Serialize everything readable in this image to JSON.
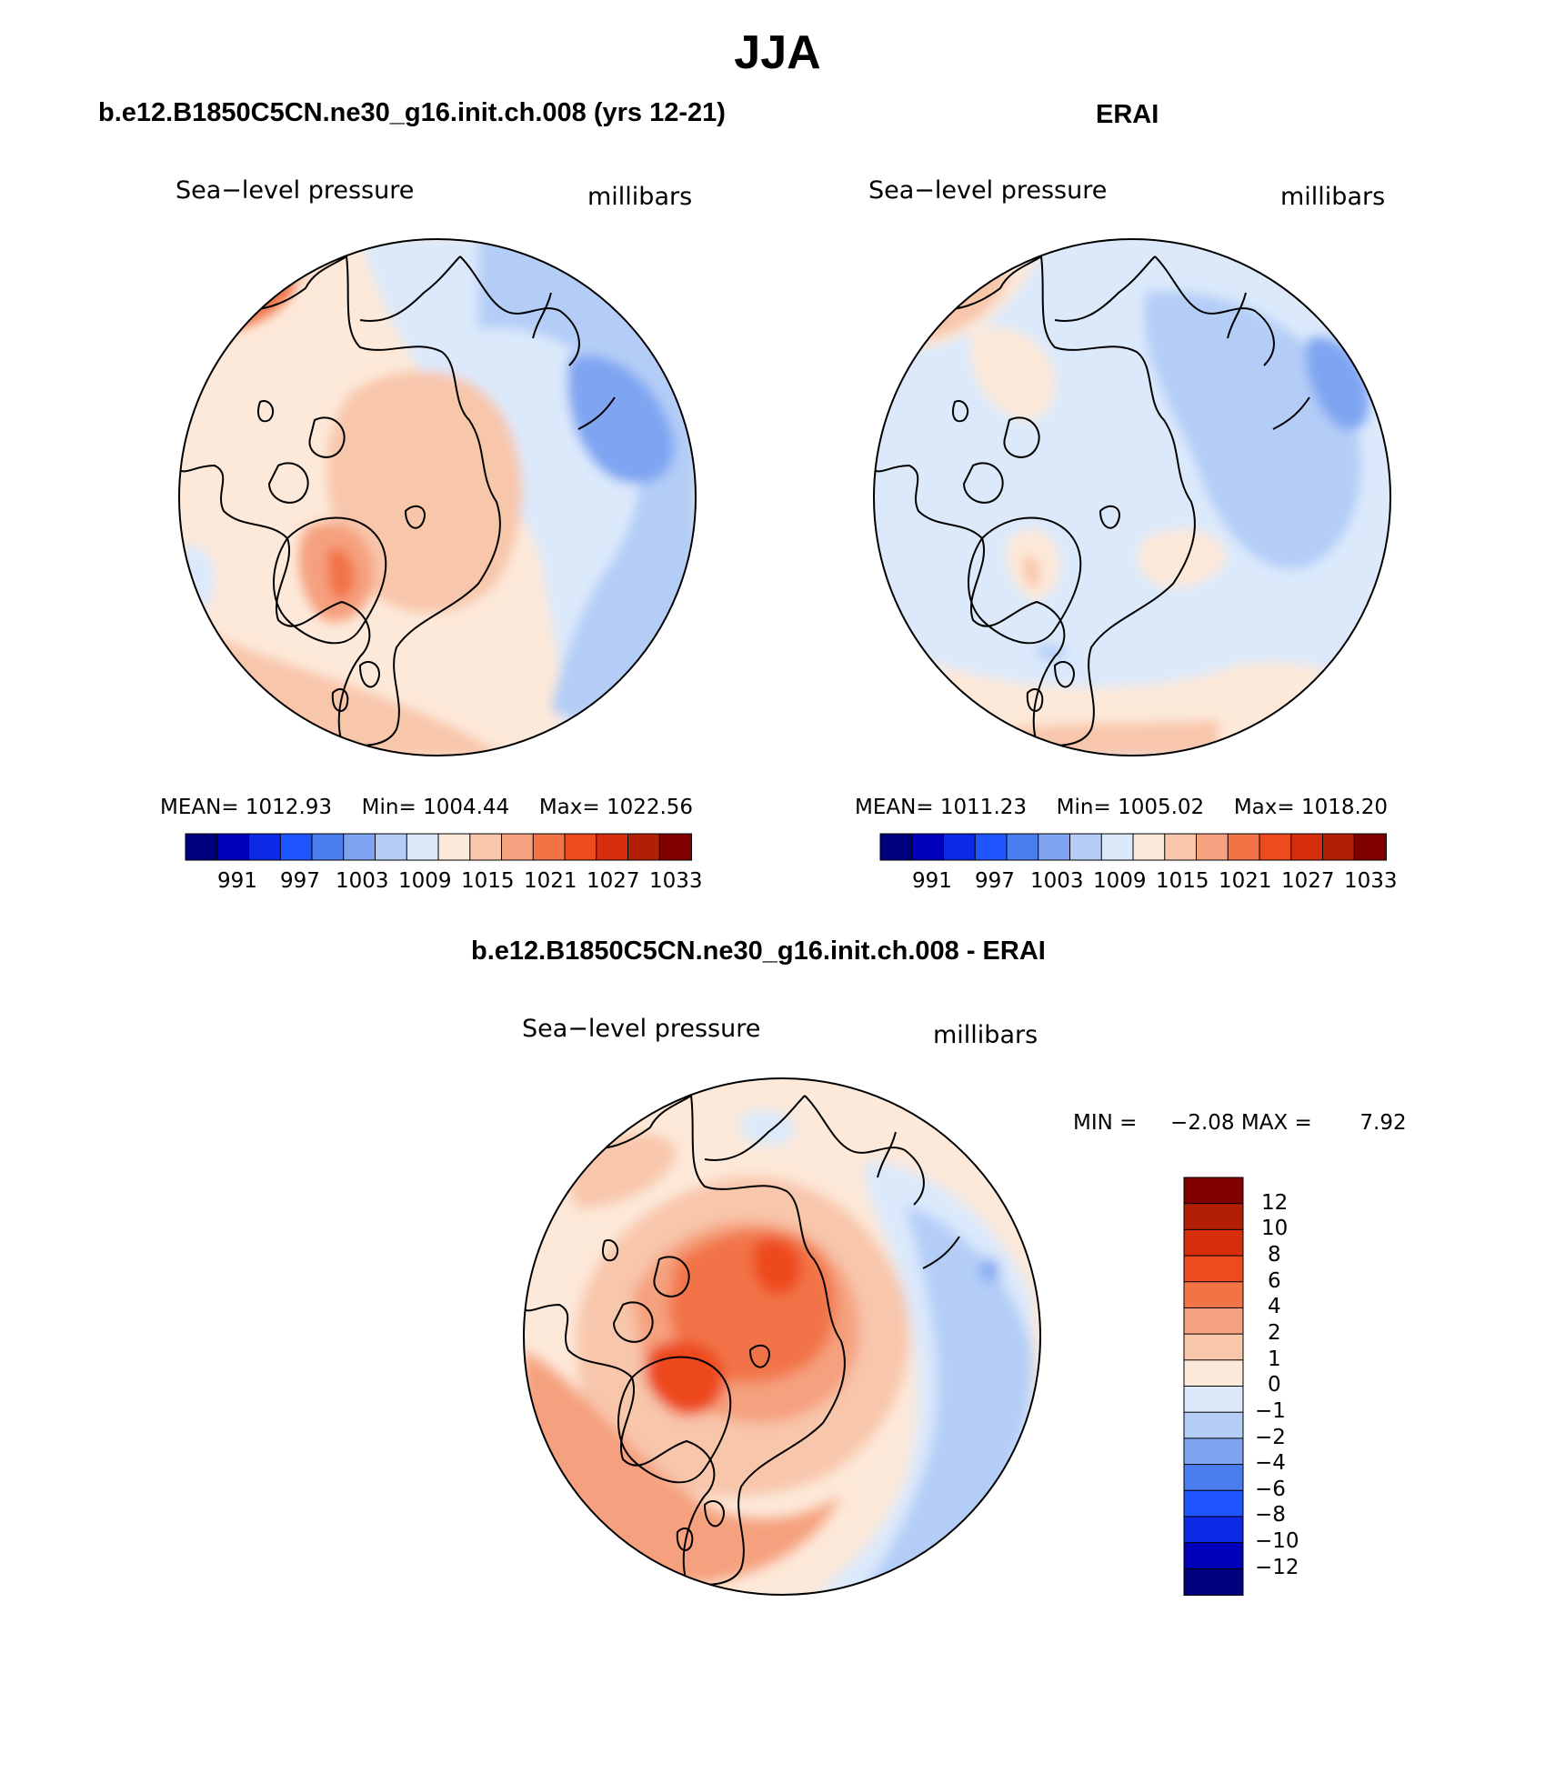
{
  "title": "JJA",
  "palette": {
    "abs": [
      "#00007f",
      "#0000bb",
      "#0c29e6",
      "#1f55ff",
      "#4a7eef",
      "#7fa5f2",
      "#b3cdf7",
      "#dbe9fb",
      "#fde9d9",
      "#f8c6ab",
      "#f5a07e",
      "#f27346",
      "#ed4a1e",
      "#d62e0c",
      "#b31f05",
      "#800000"
    ],
    "diff": [
      "#800000",
      "#b31f05",
      "#d62e0c",
      "#ed4a1e",
      "#f27346",
      "#f5a07e",
      "#f8c6ab",
      "#fde9d9",
      "#dbe9fb",
      "#b3cdf7",
      "#7fa5f2",
      "#4a7eef",
      "#1f55ff",
      "#0c29e6",
      "#0000bb",
      "#00007f"
    ]
  },
  "panels": [
    {
      "title": "b.e12.B1850C5CN.ne30_g16.init.ch.008 (yrs 12-21)",
      "variable": "Sea−level pressure",
      "units": "millibars",
      "mean_label": "MEAN=",
      "mean": "1012.93",
      "min_label": "Min=",
      "min": "1004.44",
      "max_label": "Max=",
      "max": "1022.56",
      "tick_labels": [
        "991",
        "997",
        "1003",
        "1009",
        "1015",
        "1021",
        "1027",
        "1033"
      ]
    },
    {
      "title": "ERAI",
      "variable": "Sea−level pressure",
      "units": "millibars",
      "mean_label": "MEAN=",
      "mean": "1011.23",
      "min_label": "Min=",
      "min": "1005.02",
      "max_label": "Max=",
      "max": "1018.20",
      "tick_labels": [
        "991",
        "997",
        "1003",
        "1009",
        "1015",
        "1021",
        "1027",
        "1033"
      ]
    },
    {
      "title": "b.e12.B1850C5CN.ne30_g16.init.ch.008 - ERAI",
      "variable": "Sea−level pressure",
      "units": "millibars",
      "min_label": "MIN =",
      "min": "−2.08",
      "max_label": "MAX =",
      "max": "7.92",
      "tick_labels": [
        "12",
        "10",
        "8",
        "6",
        "4",
        "2",
        "1",
        "0",
        "−1",
        "−2",
        "−4",
        "−6",
        "−8",
        "−10",
        "−12"
      ]
    }
  ]
}
